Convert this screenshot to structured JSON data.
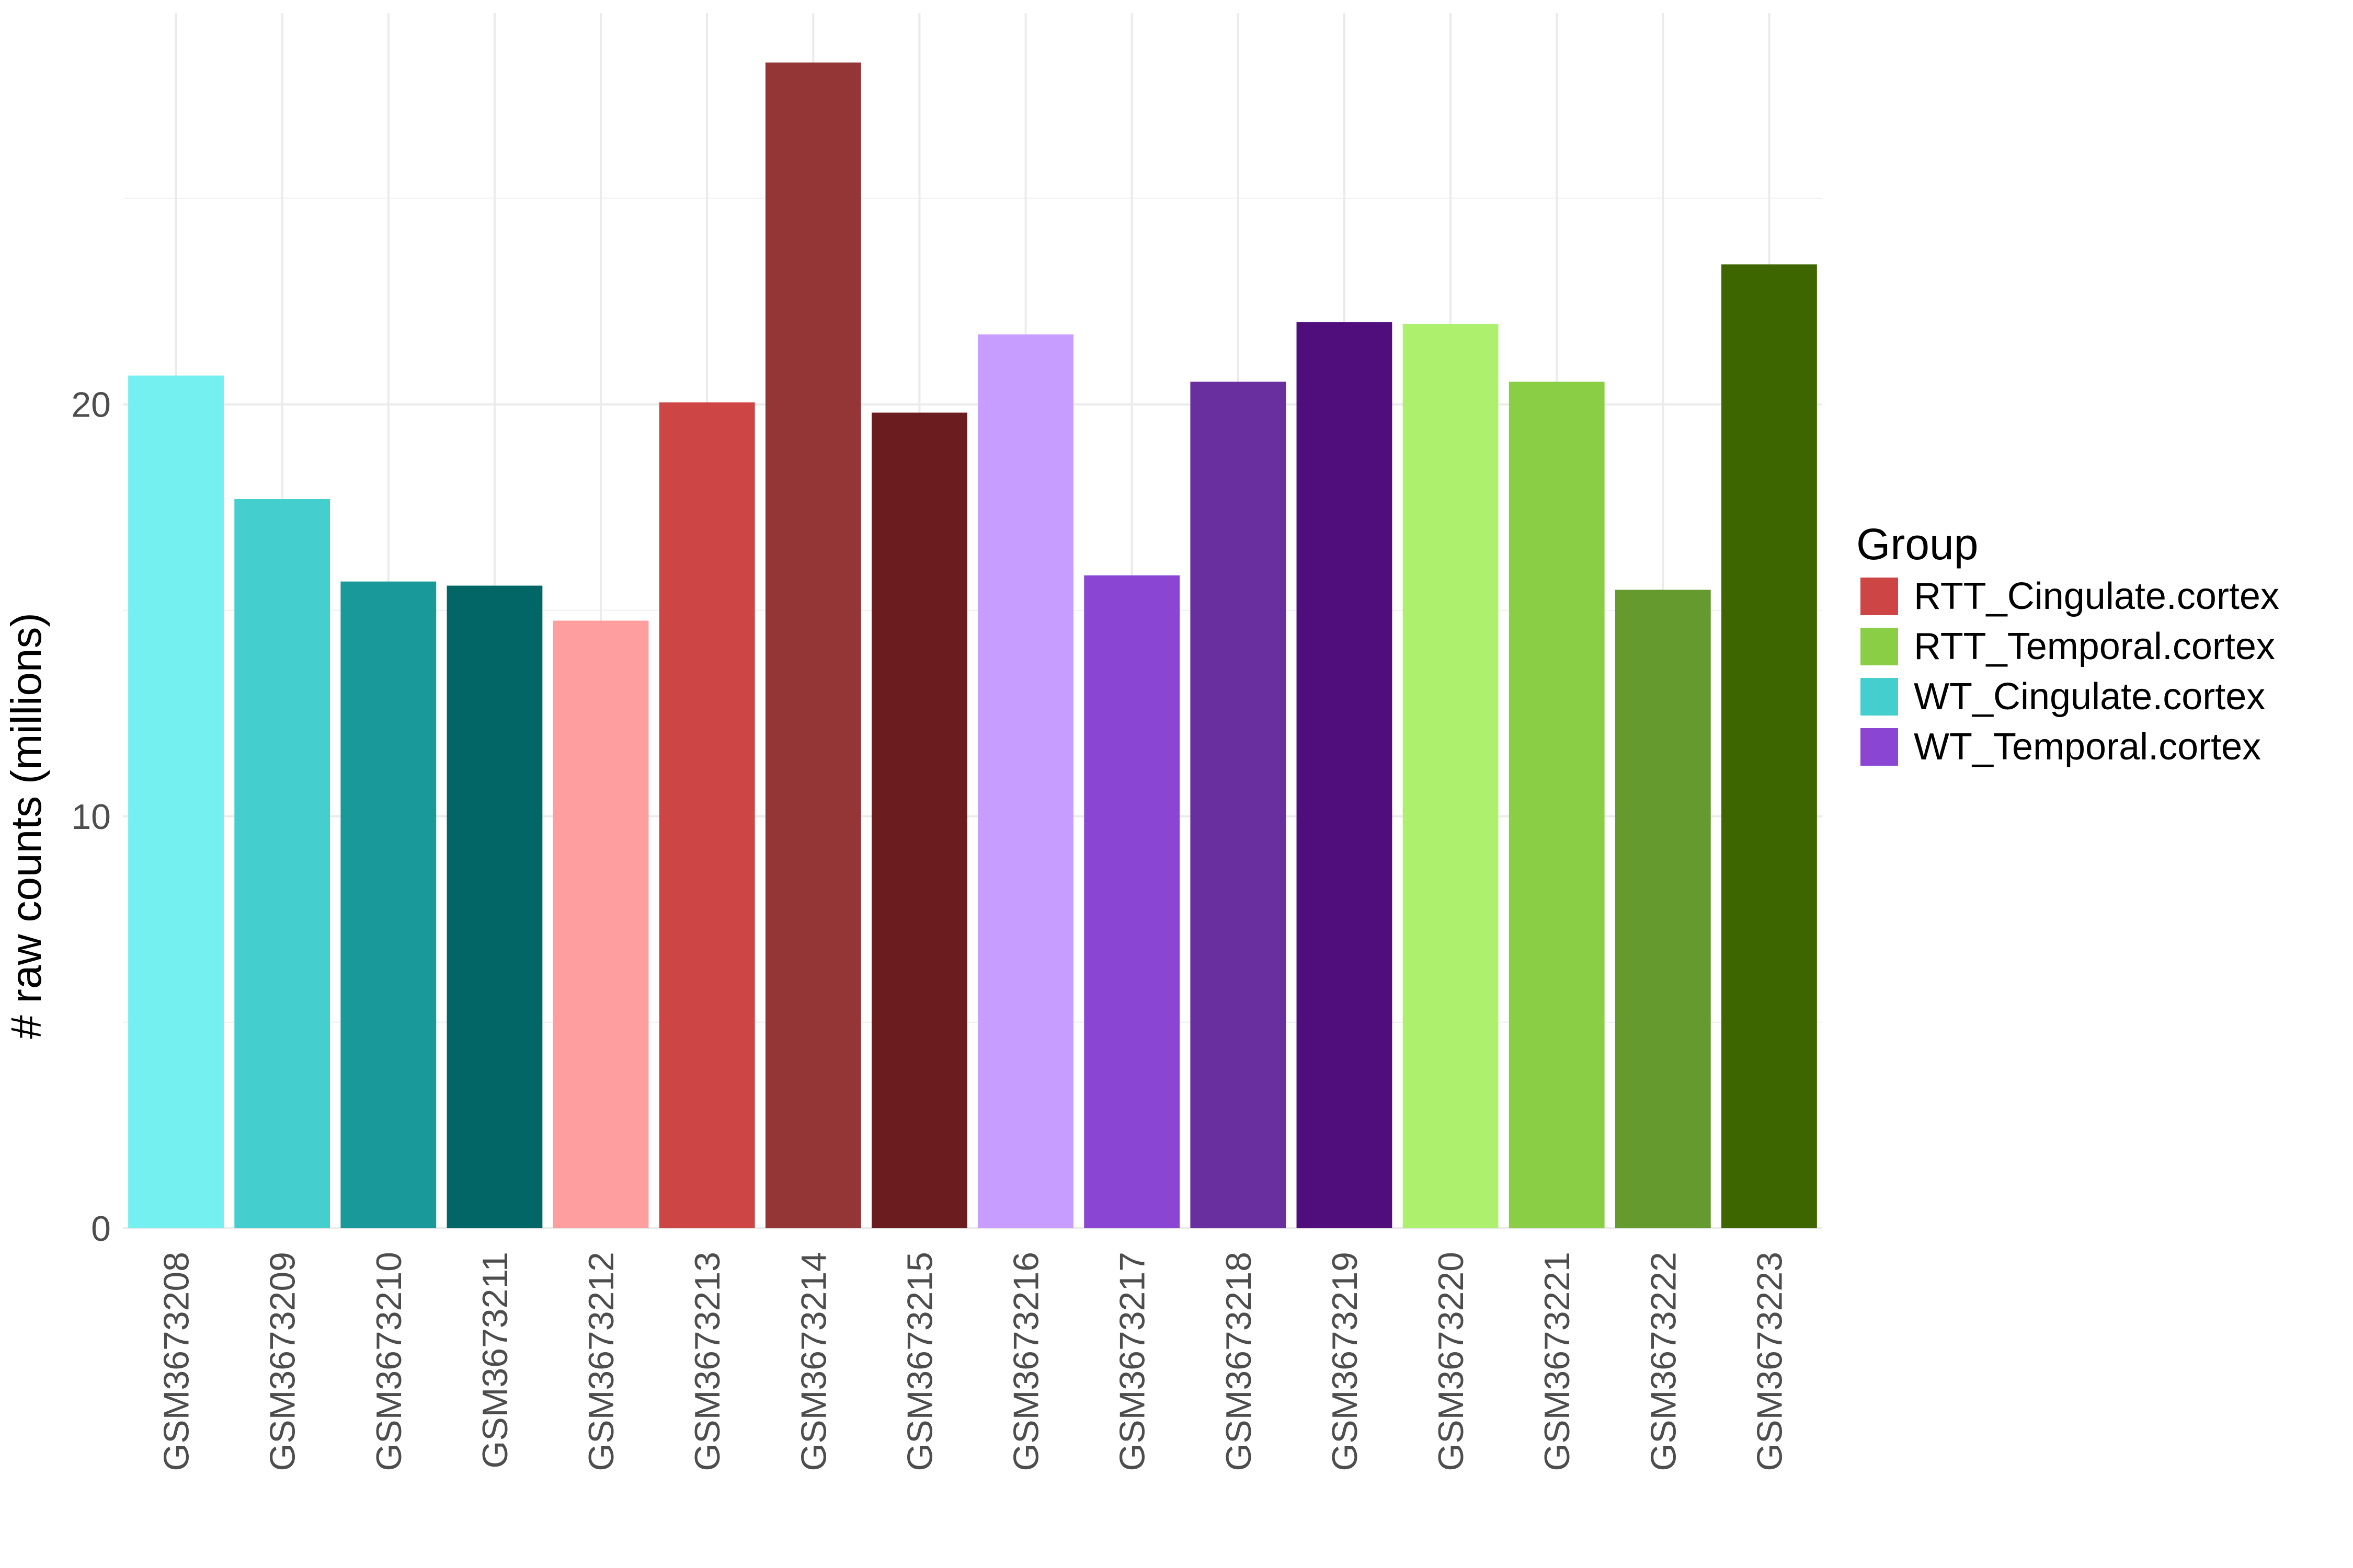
{
  "chart_data": {
    "type": "bar",
    "xlabel": "",
    "ylabel": "# raw counts (millions)",
    "ylim": [
      0,
      29.5
    ],
    "y_ticks": [
      0,
      10,
      20
    ],
    "y_tick_labels": [
      "0",
      "10",
      "20"
    ],
    "grid": true,
    "legend_position": "right",
    "legend": {
      "title": "Group",
      "entries": [
        {
          "label": "RTT_Cingulate.cortex",
          "color": "#CD4545"
        },
        {
          "label": "RTT_Temporal.cortex",
          "color": "#8ACE45"
        },
        {
          "label": "WT_Cingulate.cortex",
          "color": "#45CECE"
        },
        {
          "label": "WT_Temporal.cortex",
          "color": "#8A45D3"
        }
      ]
    },
    "categories": [
      "GSM3673208",
      "GSM3673209",
      "GSM3673210",
      "GSM3673211",
      "GSM3673212",
      "GSM3673213",
      "GSM3673214",
      "GSM3673215",
      "GSM3673216",
      "GSM3673217",
      "GSM3673218",
      "GSM3673219",
      "GSM3673220",
      "GSM3673221",
      "GSM3673222",
      "GSM3673223"
    ],
    "values": [
      20.7,
      17.7,
      15.7,
      15.6,
      14.75,
      20.05,
      28.3,
      19.8,
      21.7,
      15.85,
      20.55,
      22.0,
      21.95,
      20.55,
      15.5,
      23.4
    ],
    "bar_colors": [
      "#74F0F0",
      "#45CECE",
      "#199999",
      "#036666",
      "#FF9E9E",
      "#CD4545",
      "#943636",
      "#6A1C1E",
      "#C79EFF",
      "#8A45D3",
      "#6A2F9E",
      "#500E7C",
      "#ACF06E",
      "#8ACE45",
      "#659A2E",
      "#3D6600"
    ]
  }
}
